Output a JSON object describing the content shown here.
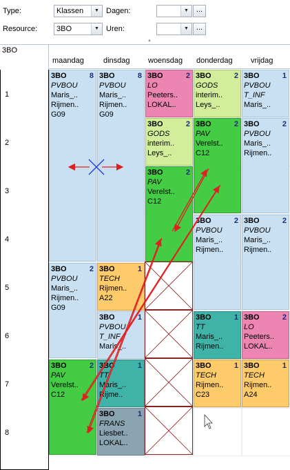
{
  "filters": {
    "type_label": "Type:",
    "type_value": "Klassen",
    "resource_label": "Resource:",
    "resource_value": "3BO",
    "dagen_label": "Dagen:",
    "dagen_value": "",
    "uren_label": "Uren:",
    "uren_value": "",
    "ellipsis": "..."
  },
  "schedule": {
    "class_label": "3BO",
    "days": [
      "maandag",
      "dinsdag",
      "woensdag",
      "donderdag",
      "vrijdag"
    ],
    "periods": [
      "1",
      "2",
      "3",
      "4",
      "5",
      "6",
      "7",
      "8"
    ]
  },
  "lessons": [
    {
      "cls": "3BO",
      "n": "8",
      "subj": "PVBOU",
      "teacher": "Maris_..",
      "room": "Rijmen..",
      "extra": "G09"
    },
    {
      "cls": "3BO",
      "n": "8",
      "subj": "PVBOU",
      "teacher": "Maris_..",
      "room": "Rijmen..",
      "extra": "G09"
    },
    {
      "cls": "3BO",
      "n": "2",
      "subj": "LO",
      "teacher": "Peeters..",
      "room": "LOKAL..",
      "extra": ""
    },
    {
      "cls": "3BO",
      "n": "2",
      "subj": "GODS",
      "teacher": "interim..",
      "room": "Leys_..",
      "extra": ""
    },
    {
      "cls": "3BO",
      "n": "1",
      "subj": "PVBOU",
      "subj2": "T_INF",
      "teacher": "Maris_..",
      "room": "",
      "extra": ""
    },
    {
      "cls": "3BO",
      "n": "2",
      "subj": "GODS",
      "teacher": "interim..",
      "room": "Leys_..",
      "extra": ""
    },
    {
      "cls": "3BO",
      "n": "2",
      "subj": "PAV",
      "teacher": "Verelst..",
      "room": "C12",
      "extra": ""
    },
    {
      "cls": "3BO",
      "n": "2",
      "subj": "PVBOU",
      "teacher": "Maris_..",
      "room": "Rijmen..",
      "extra": ""
    },
    {
      "cls": "3BO",
      "n": "2",
      "subj": "PAV",
      "teacher": "Verelst..",
      "room": "C12",
      "extra": ""
    },
    {
      "cls": "3BO",
      "n": "2",
      "subj": "PVBOU",
      "teacher": "Maris_..",
      "room": "Rijmen..",
      "extra": ""
    },
    {
      "cls": "3BO",
      "n": "2",
      "subj": "PVBOU",
      "teacher": "Maris_..",
      "room": "Rijmen..",
      "extra": ""
    },
    {
      "cls": "3BO",
      "n": "2",
      "subj": "PVBOU",
      "teacher": "Maris_..",
      "room": "Rijmen..",
      "extra": "G09"
    },
    {
      "cls": "3BO",
      "n": "1",
      "subj": "TECH",
      "teacher": "Rijmen..",
      "room": "A22",
      "extra": ""
    },
    {
      "cls": "3BO",
      "n": "1",
      "subj": "PVBOU",
      "subj2": "T_INF",
      "teacher": "Maris_..",
      "room": "",
      "extra": ""
    },
    {
      "cls": "3BO",
      "n": "1",
      "subj": "TT",
      "teacher": "Maris_..",
      "room": "Rijmen..",
      "extra": ""
    },
    {
      "cls": "3BO",
      "n": "2",
      "subj": "LO",
      "teacher": "Peeters..",
      "room": "LOKAL..",
      "extra": ""
    },
    {
      "cls": "3BO",
      "n": "2",
      "subj": "PAV",
      "teacher": "Verelst..",
      "room": "C12",
      "extra": ""
    },
    {
      "cls": "3BO",
      "n": "1",
      "subj": "TT",
      "teacher": "Maris_..",
      "room": "Rijme..",
      "extra": ""
    },
    {
      "cls": "3BO",
      "n": "1",
      "subj": "TECH",
      "teacher": "Rijmen..",
      "room": "C23",
      "extra": ""
    },
    {
      "cls": "3BO",
      "n": "1",
      "subj": "TECH",
      "teacher": "Rijmen..",
      "room": "A24",
      "extra": ""
    },
    {
      "cls": "3BO",
      "n": "1",
      "subj": "FRANS",
      "teacher": "Liesbet..",
      "room": "LOKAL..",
      "extra": ""
    }
  ],
  "colors": {
    "blue": "#c8e0f2",
    "green": "#44cc44",
    "light_green": "#d2ee9a",
    "pink": "#ec85b1",
    "orange": "#fecb6a",
    "teal": "#40b3a9",
    "grey": "#8ba4b2",
    "drag_arrow": "#e02020",
    "move_cursor": "#2040e0"
  },
  "icons": {
    "dropdown": "chevron-down-icon",
    "move": "move-cross-icon",
    "cursor": "mouse-pointer-icon"
  }
}
